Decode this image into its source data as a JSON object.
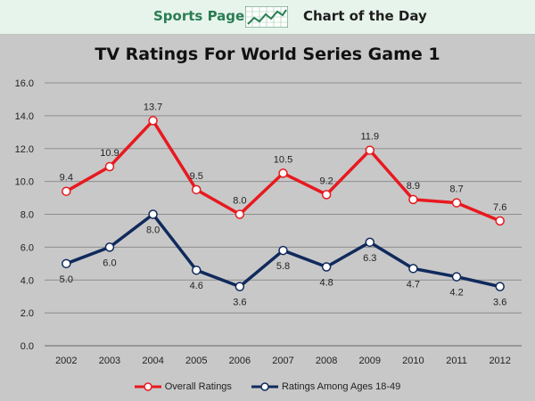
{
  "banner": {
    "left_text": "Sports Page",
    "right_text": "Chart of the Day",
    "logo_icon": "trend-line-icon",
    "accent_color": "#2a7d52"
  },
  "chart_data": {
    "type": "line",
    "title": "TV Ratings For World Series Game 1",
    "xlabel": "",
    "ylabel": "",
    "categories": [
      "2002",
      "2003",
      "2004",
      "2005",
      "2006",
      "2007",
      "2008",
      "2009",
      "2010",
      "2011",
      "2012"
    ],
    "ylim": [
      0,
      16
    ],
    "yticks": [
      "0.0",
      "2.0",
      "4.0",
      "6.0",
      "8.0",
      "10.0",
      "12.0",
      "14.0",
      "16.0"
    ],
    "grid": true,
    "legend_position": "bottom",
    "series": [
      {
        "name": "Overall Ratings",
        "color": "#e8191f",
        "values": [
          9.4,
          10.9,
          13.7,
          9.5,
          8.0,
          10.5,
          9.2,
          11.9,
          8.9,
          8.7,
          7.6
        ],
        "labels": [
          "9.4",
          "10.9",
          "13.7",
          "9.5",
          "8.0",
          "10.5",
          "9.2",
          "11.9",
          "8.9",
          "8.7",
          "7.6"
        ]
      },
      {
        "name": "Ratings Among Ages 18-49",
        "color": "#102a5c",
        "values": [
          5.0,
          6.0,
          8.0,
          4.6,
          3.6,
          5.8,
          4.8,
          6.3,
          4.7,
          4.2,
          3.6
        ],
        "labels": [
          "5.0",
          "6.0",
          "8.0",
          "4.6",
          "3.6",
          "5.8",
          "4.8",
          "6.3",
          "4.7",
          "4.2",
          "3.6"
        ]
      }
    ]
  }
}
